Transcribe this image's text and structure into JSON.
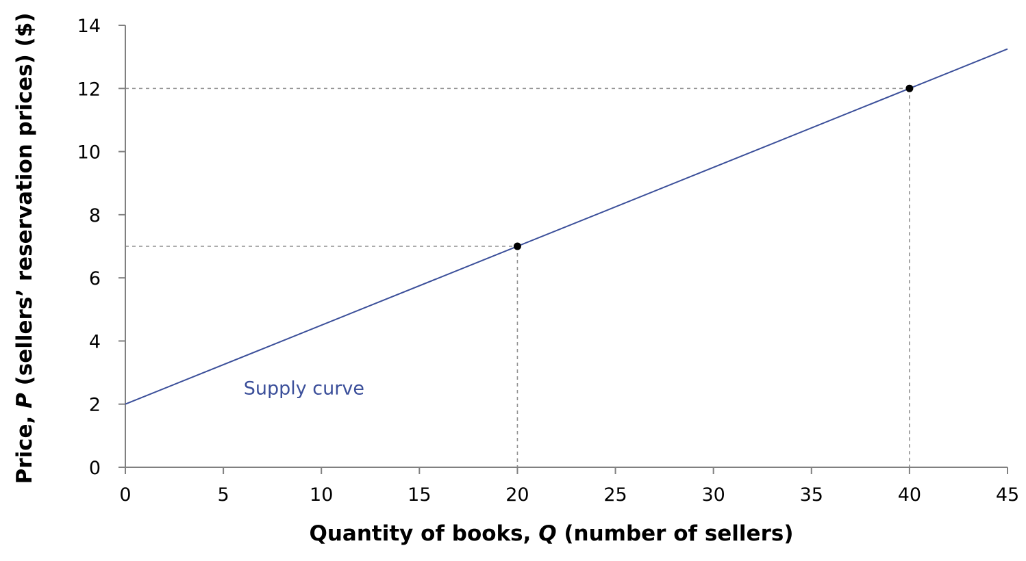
{
  "chart_data": {
    "type": "line",
    "title": "",
    "xlabel_parts": [
      {
        "text": "Quantity of books, ",
        "italic": false
      },
      {
        "text": "Q",
        "italic": true
      },
      {
        "text": " (number of sellers)",
        "italic": false
      }
    ],
    "ylabel_parts": [
      {
        "text": "Price, ",
        "italic": false
      },
      {
        "text": "P",
        "italic": true
      },
      {
        "text": " (sellers’ reservation prices) ($)",
        "italic": false
      }
    ],
    "xlim": [
      0,
      45
    ],
    "ylim": [
      0,
      14
    ],
    "x_ticks": [
      0,
      5,
      10,
      15,
      20,
      25,
      30,
      35,
      40,
      45
    ],
    "y_ticks": [
      0,
      2,
      4,
      6,
      8,
      10,
      12,
      14
    ],
    "grid": false,
    "series": [
      {
        "name": "Supply curve",
        "color": "#3b4f9a",
        "x": [
          0,
          45
        ],
        "y": [
          2,
          13.25
        ]
      }
    ],
    "points": [
      {
        "x": 20,
        "y": 7
      },
      {
        "x": 40,
        "y": 12
      }
    ],
    "curve_label": {
      "text": "Supply curve",
      "x": 6,
      "y": 2.5
    },
    "colors": {
      "curve": "#3b4f9a",
      "axis": "#808080",
      "guide": "#909090",
      "point": "#000000"
    }
  }
}
